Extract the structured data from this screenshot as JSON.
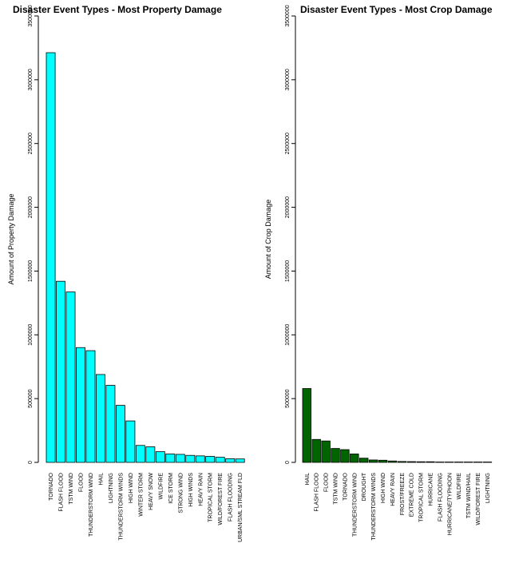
{
  "chart_data": [
    {
      "type": "bar",
      "title": "Disaster Event Types - Most Property Damage",
      "ylabel": "Amount of Property Damage",
      "xlabel": "",
      "ylim": [
        0,
        3500000
      ],
      "yticks": [
        0,
        500000,
        1000000,
        1500000,
        2000000,
        2500000,
        3000000,
        3500000
      ],
      "ytick_labels": [
        "0",
        "500000",
        "1000000",
        "1500000",
        "2000000",
        "2500000",
        "3000000",
        "3500000"
      ],
      "fill_color": "#00ffff",
      "categories": [
        "TORNADO",
        "FLASH FLOOD",
        "TSTM WIND",
        "FLOOD",
        "THUNDERSTORM WIND",
        "HAIL",
        "LIGHTNING",
        "THUNDERSTORM WINDS",
        "HIGH WIND",
        "WINTER STORM",
        "HEAVY SNOW",
        "WILDFIRE",
        "ICE STORM",
        "STRONG WIND",
        "HIGH WINDS",
        "HEAVY RAIN",
        "TROPICAL STORM",
        "WILD/FOREST FIRE",
        "FLASH FLOODING",
        "URBAN/SML STREAM FLD"
      ],
      "values": [
        3212000,
        1420000,
        1336000,
        900000,
        876000,
        689000,
        604000,
        447000,
        325000,
        133000,
        122000,
        84000,
        66000,
        63000,
        55000,
        51000,
        47000,
        40000,
        29000,
        27000
      ],
      "grid": false,
      "legend": "none"
    },
    {
      "type": "bar",
      "title": "Disaster Event Types - Most Crop Damage",
      "ylabel": "Amount of Crop Damage",
      "xlabel": "",
      "ylim": [
        0,
        3500000
      ],
      "yticks": [
        0,
        500000,
        1000000,
        1500000,
        2000000,
        2500000,
        3000000,
        3500000
      ],
      "ytick_labels": [
        "0",
        "500000",
        "1000000",
        "1500000",
        "2000000",
        "2500000",
        "3000000",
        "3500000"
      ],
      "fill_color": "#006400",
      "categories": [
        "HAIL",
        "FLASH FLOOD",
        "FLOOD",
        "TSTM WIND",
        "TORNADO",
        "THUNDERSTORM WIND",
        "DROUGHT",
        "THUNDERSTORM WINDS",
        "HIGH WIND",
        "HEAVY RAIN",
        "FROST/FREEZE",
        "EXTREME COLD",
        "TROPICAL STORM",
        "HURRICANE",
        "FLASH FLOODING",
        "HURRICANE/TYPHOON",
        "WILDFIRE",
        "TSTM WIND/HAIL",
        "WILD/FOREST FIRE",
        "LIGHTNING"
      ],
      "values": [
        579000,
        180000,
        168000,
        109000,
        100000,
        66000,
        33000,
        19000,
        17000,
        11000,
        7000,
        6000,
        5000,
        5000,
        3000,
        3000,
        3000,
        3000,
        3000,
        3000
      ],
      "grid": false,
      "legend": "none"
    }
  ]
}
